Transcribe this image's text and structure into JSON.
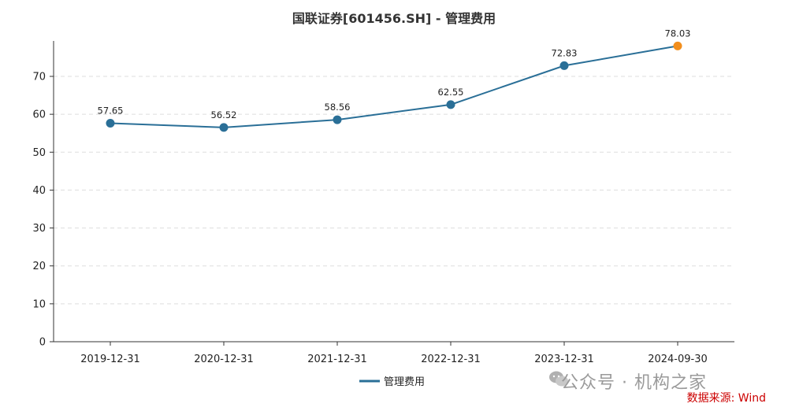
{
  "chart_data": {
    "type": "line",
    "title": "国联证券[601456.SH] - 管理费用",
    "categories": [
      "2019-12-31",
      "2020-12-31",
      "2021-12-31",
      "2022-12-31",
      "2023-12-31",
      "2024-09-30"
    ],
    "series": [
      {
        "name": "管理费用",
        "values": [
          57.65,
          56.52,
          58.56,
          62.55,
          72.83,
          78.03
        ],
        "color": "#2a6f97"
      }
    ],
    "highlight_color": "#f28e1c",
    "data_labels": [
      "57.65",
      "56.52",
      "58.56",
      "62.55",
      "72.83",
      "78.03"
    ],
    "ylim": [
      0,
      80
    ],
    "yticks": [
      0,
      10,
      20,
      30,
      40,
      50,
      60,
      70
    ],
    "xlabel": "",
    "ylabel": "",
    "grid": true,
    "legend": "bottom-center"
  },
  "watermark": {
    "text": "公众号 · 机构之家",
    "icon": "wechat-icon"
  },
  "source": "数据来源: Wind"
}
